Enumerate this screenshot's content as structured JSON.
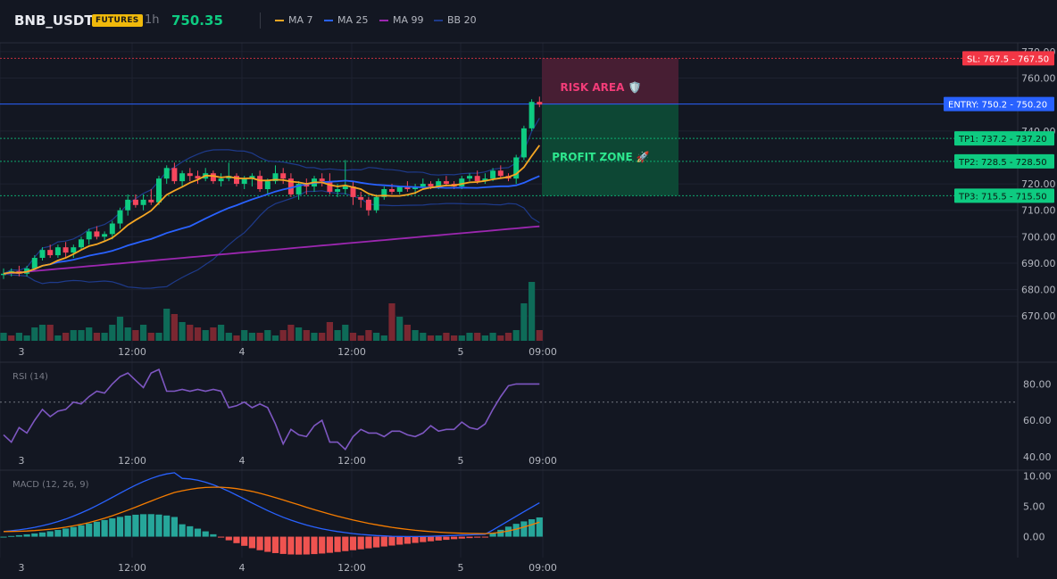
{
  "header": {
    "symbol": "BNB_USDT",
    "badge": "FUTURES",
    "timeframe": "1h",
    "last_price": "750.35",
    "indicators": [
      {
        "label": "MA 7",
        "color": "#f5a623"
      },
      {
        "label": "MA 25",
        "color": "#2962ff"
      },
      {
        "label": "MA 99",
        "color": "#9c27b0"
      },
      {
        "label": "BB 20",
        "color": "#1e3a8a"
      }
    ]
  },
  "price_axis": [
    "770.00",
    "760.00",
    "740.00",
    "720.00",
    "710.00",
    "700.00",
    "690.00",
    "680.00",
    "670.00"
  ],
  "price_labels": {
    "sl": {
      "text": "SL: 767.5 - 767.50",
      "color": "#f23645"
    },
    "entry": {
      "text": "ENTRY: 750.2 - 750.20",
      "color": "#2962ff"
    },
    "tp1": {
      "text": "TP1: 737.2 - 737.20",
      "color": "#0ecb81"
    },
    "tp2": {
      "text": "TP2: 728.5 - 728.50",
      "color": "#0ecb81"
    },
    "tp3": {
      "text": "TP3: 715.5 - 715.50",
      "color": "#0ecb81"
    }
  },
  "zones": {
    "risk": "RISK AREA 🛡️",
    "profit": "PROFIT ZONE 🚀"
  },
  "time_axis": [
    "3",
    "12:00",
    "4",
    "12:00",
    "5",
    "09:00"
  ],
  "rsi": {
    "title": "RSI (14)",
    "axis": [
      "80.00",
      "60.00",
      "40.00"
    ]
  },
  "macd": {
    "title": "MACD (12, 26, 9)",
    "axis": [
      "10.00",
      "5.00",
      "0.00"
    ]
  },
  "colors": {
    "up": "#0ecb81",
    "down": "#f6465d",
    "ma7": "#f5a623",
    "ma25": "#2962ff",
    "ma99": "#9c27b0",
    "bb": "#1e3a8a",
    "rsi": "#7e57c2"
  },
  "chart_data": [
    {
      "type": "candlestick",
      "title": "BNB_USDT 1h",
      "x_ticks": [
        "3",
        "12:00",
        "4",
        "12:00",
        "5",
        "09:00"
      ],
      "ylim": [
        664,
        772
      ],
      "ohlc": [
        [
          686,
          688,
          684,
          686
        ],
        [
          686,
          688,
          685,
          687
        ],
        [
          687,
          689,
          685,
          686
        ],
        [
          686,
          689,
          685,
          688
        ],
        [
          688,
          693,
          687,
          692
        ],
        [
          692,
          696,
          691,
          695
        ],
        [
          695,
          697,
          692,
          693
        ],
        [
          693,
          697,
          692,
          696
        ],
        [
          696,
          698,
          692,
          694
        ],
        [
          694,
          697,
          692,
          696
        ],
        [
          696,
          700,
          695,
          699
        ],
        [
          699,
          703,
          697,
          702
        ],
        [
          702,
          704,
          699,
          700
        ],
        [
          700,
          702,
          698,
          701
        ],
        [
          701,
          706,
          699,
          705
        ],
        [
          705,
          711,
          703,
          710
        ],
        [
          710,
          716,
          708,
          714
        ],
        [
          714,
          716,
          711,
          712
        ],
        [
          712,
          716,
          710,
          714
        ],
        [
          714,
          718,
          712,
          713
        ],
        [
          713,
          723,
          712,
          722
        ],
        [
          722,
          727,
          720,
          726
        ],
        [
          726,
          728,
          720,
          721
        ],
        [
          721,
          725,
          719,
          724
        ],
        [
          724,
          726,
          721,
          723
        ],
        [
          723,
          725,
          720,
          722
        ],
        [
          722,
          726,
          721,
          724
        ],
        [
          724,
          725,
          720,
          721
        ],
        [
          721,
          724,
          719,
          722
        ],
        [
          722,
          728,
          721,
          723
        ],
        [
          723,
          724,
          719,
          720
        ],
        [
          720,
          723,
          718,
          722
        ],
        [
          722,
          724,
          719,
          723
        ],
        [
          723,
          725,
          717,
          718
        ],
        [
          718,
          722,
          716,
          721
        ],
        [
          721,
          727,
          720,
          724
        ],
        [
          724,
          726,
          720,
          722
        ],
        [
          722,
          724,
          715,
          716
        ],
        [
          716,
          721,
          714,
          720
        ],
        [
          720,
          722,
          716,
          719
        ],
        [
          719,
          723,
          717,
          722
        ],
        [
          722,
          724,
          719,
          721
        ],
        [
          721,
          724,
          716,
          717
        ],
        [
          717,
          720,
          715,
          718
        ],
        [
          718,
          729,
          716,
          719
        ],
        [
          719,
          721,
          712,
          715
        ],
        [
          715,
          717,
          711,
          714
        ],
        [
          714,
          715,
          708,
          710
        ],
        [
          710,
          716,
          709,
          715
        ],
        [
          715,
          719,
          714,
          718
        ],
        [
          718,
          720,
          716,
          717
        ],
        [
          717,
          719,
          716,
          719
        ],
        [
          719,
          721,
          717,
          718
        ],
        [
          718,
          720,
          716,
          719
        ],
        [
          719,
          722,
          718,
          720
        ],
        [
          720,
          721,
          718,
          719
        ],
        [
          719,
          722,
          718,
          721
        ],
        [
          721,
          723,
          719,
          720
        ],
        [
          720,
          721,
          718,
          719
        ],
        [
          719,
          723,
          718,
          722
        ],
        [
          722,
          724,
          721,
          723
        ],
        [
          723,
          725,
          720,
          721
        ],
        [
          721,
          724,
          720,
          722
        ],
        [
          722,
          726,
          721,
          725
        ],
        [
          725,
          727,
          722,
          723
        ],
        [
          723,
          724,
          721,
          722
        ],
        [
          722,
          731,
          720,
          730
        ],
        [
          730,
          742,
          729,
          741
        ],
        [
          741,
          752,
          740,
          751
        ],
        [
          751,
          753,
          749,
          750
        ]
      ],
      "volume": [
        3,
        2,
        3,
        2,
        5,
        6,
        6,
        2,
        3,
        4,
        4,
        5,
        3,
        3,
        6,
        9,
        5,
        4,
        6,
        3,
        3,
        12,
        10,
        7,
        6,
        5,
        4,
        5,
        6,
        3,
        2,
        4,
        3,
        3,
        4,
        2,
        4,
        6,
        5,
        4,
        3,
        3,
        7,
        4,
        6,
        3,
        2,
        4,
        3,
        2,
        14,
        9,
        6,
        4,
        3,
        2,
        2,
        3,
        2,
        2,
        3,
        3,
        2,
        3,
        2,
        3,
        4,
        14,
        22,
        4
      ],
      "volume_up": [
        1,
        0,
        1,
        1,
        1,
        1,
        0,
        1,
        0,
        1,
        1,
        1,
        0,
        1,
        1,
        1,
        1,
        0,
        1,
        0,
        1,
        1,
        0,
        1,
        0,
        0,
        1,
        0,
        1,
        1,
        0,
        1,
        1,
        0,
        1,
        1,
        0,
        0,
        1,
        0,
        1,
        0,
        0,
        1,
        1,
        0,
        0,
        0,
        1,
        1,
        0,
        1,
        0,
        1,
        1,
        0,
        1,
        0,
        0,
        1,
        1,
        0,
        1,
        1,
        0,
        0,
        1,
        1,
        1,
        0
      ]
    },
    {
      "type": "line",
      "title": "RSI (14)",
      "ylim": [
        36,
        90
      ]
    },
    {
      "type": "bar",
      "title": "MACD (12, 26, 9)",
      "ylim": [
        -3,
        10.5
      ]
    }
  ]
}
